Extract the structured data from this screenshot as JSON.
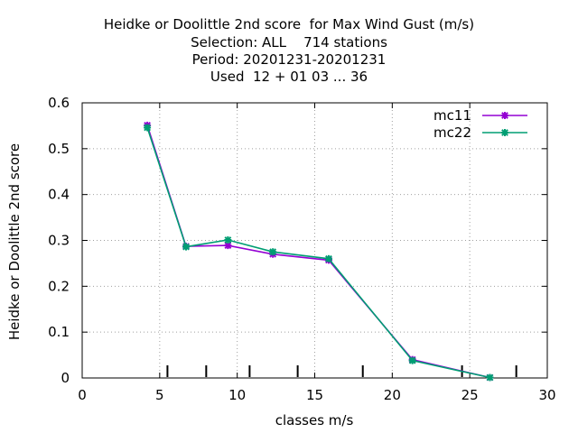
{
  "chart_data": {
    "type": "line",
    "title_lines": [
      "Heidke or Doolittle 2nd score  for Max Wind Gust (m/s)",
      "Selection: ALL    714 stations",
      "Period: 20201231-20201231",
      "Used  12 + 01 03 ... 36"
    ],
    "xlabel": "classes m/s",
    "ylabel": "Heidke or Doolittle 2nd score",
    "xlim": [
      0,
      30
    ],
    "ylim": [
      0,
      0.6
    ],
    "xticks": [
      "0",
      "5",
      "10",
      "15",
      "20",
      "25",
      "30"
    ],
    "yticks": [
      "0",
      "0.1",
      "0.2",
      "0.3",
      "0.4",
      "0.5",
      "0.6"
    ],
    "grid": true,
    "legend_position": "top-right",
    "class_markers_x": [
      5.5,
      8.0,
      10.8,
      13.9,
      18.1,
      24.5,
      28.0
    ],
    "series": [
      {
        "name": "mc11",
        "color": "#9400d3",
        "x": [
          4.2,
          6.7,
          9.4,
          12.3,
          15.9,
          21.3,
          26.3
        ],
        "y": [
          0.551,
          0.287,
          0.289,
          0.27,
          0.257,
          0.04,
          0.001
        ]
      },
      {
        "name": "mc22",
        "color": "#009e73",
        "x": [
          4.2,
          6.7,
          9.4,
          12.3,
          15.9,
          21.3,
          26.3
        ],
        "y": [
          0.546,
          0.286,
          0.301,
          0.275,
          0.26,
          0.038,
          0.001
        ]
      }
    ]
  }
}
